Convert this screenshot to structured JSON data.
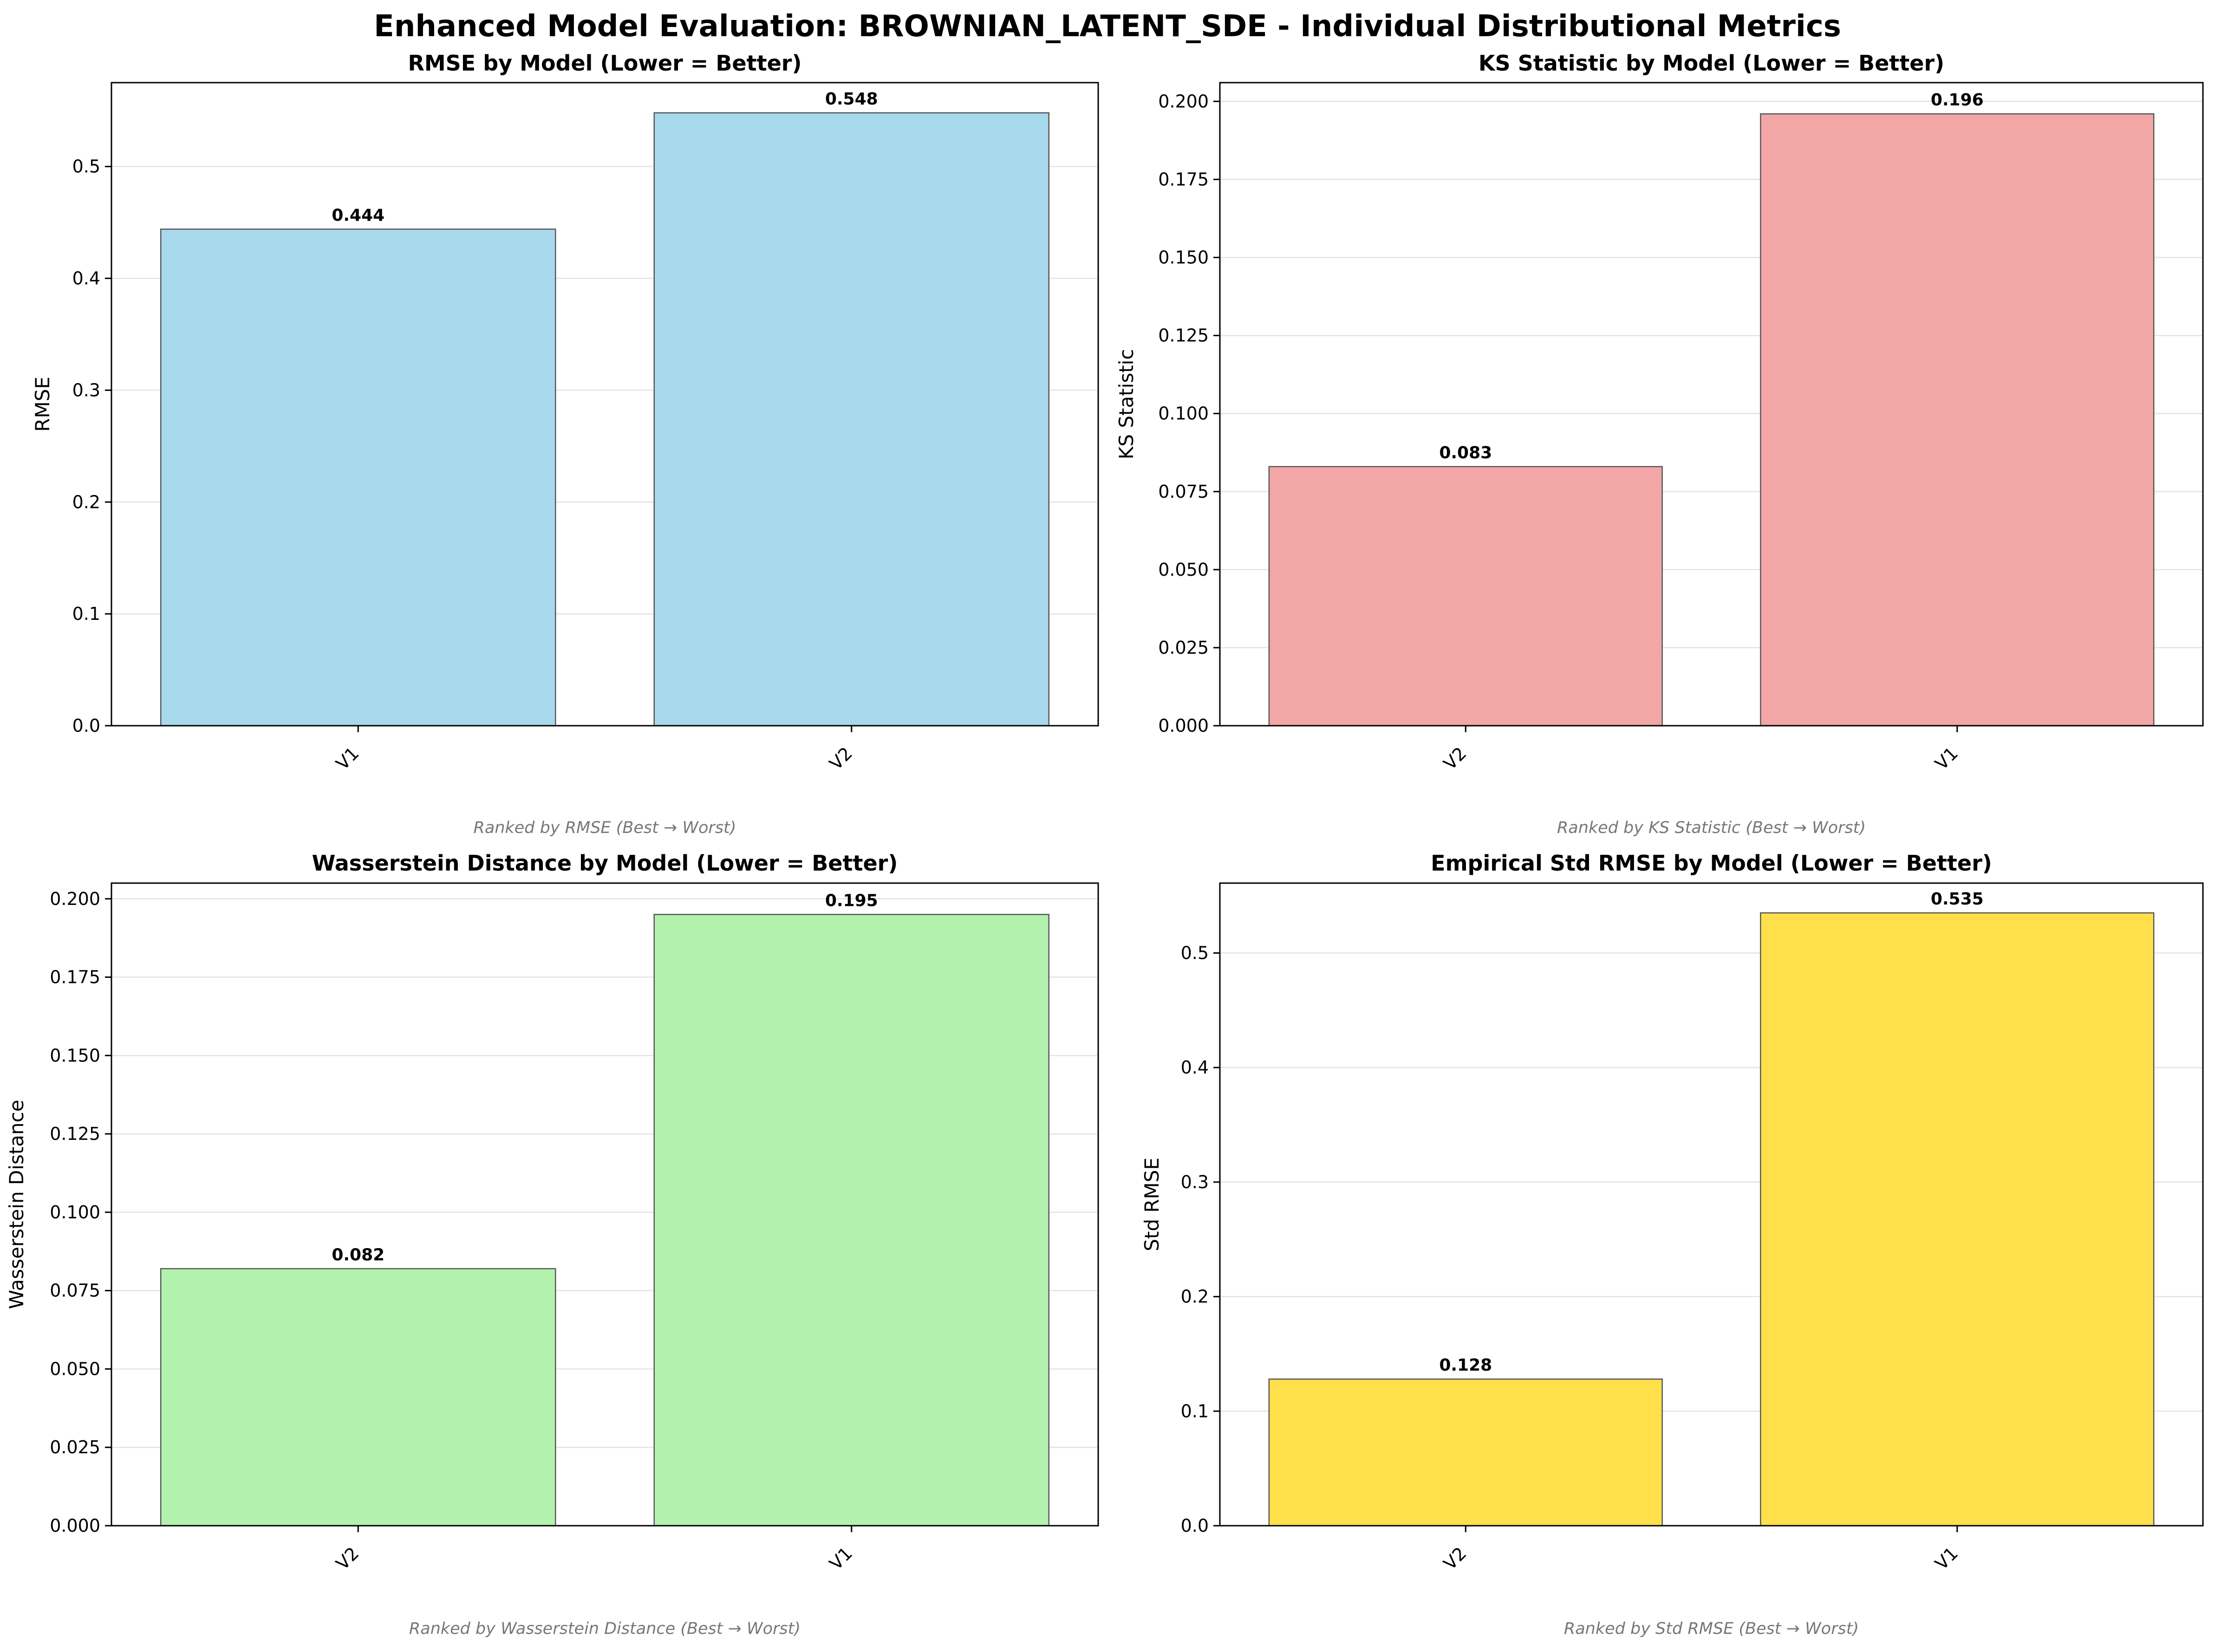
{
  "title": "Enhanced Model Evaluation: BROWNIAN_LATENT_SDE - Individual Distributional Metrics",
  "chart_data": [
    {
      "type": "bar",
      "title": "RMSE by Model (Lower = Better)",
      "ylabel": "RMSE",
      "categories": [
        "V1",
        "V2"
      ],
      "values": [
        0.444,
        0.548
      ],
      "value_labels": [
        "0.444",
        "0.548"
      ],
      "ylim": [
        0,
        0.575
      ],
      "yticks": [
        0,
        0.1,
        0.2,
        0.3,
        0.4,
        0.5
      ],
      "ytick_labels": [
        "0.0",
        "0.1",
        "0.2",
        "0.3",
        "0.4",
        "0.5"
      ],
      "color": "#a8d8ec",
      "grid": "y",
      "note": "Ranked by RMSE (Best → Worst)"
    },
    {
      "type": "bar",
      "title": "KS Statistic by Model (Lower = Better)",
      "ylabel": "KS Statistic",
      "categories": [
        "V2",
        "V1"
      ],
      "values": [
        0.083,
        0.196
      ],
      "value_labels": [
        "0.083",
        "0.196"
      ],
      "ylim": [
        0,
        0.206
      ],
      "yticks": [
        0,
        0.025,
        0.05,
        0.075,
        0.1,
        0.125,
        0.15,
        0.175,
        0.2
      ],
      "ytick_labels": [
        "0.000",
        "0.025",
        "0.050",
        "0.075",
        "0.100",
        "0.125",
        "0.150",
        "0.175",
        "0.200"
      ],
      "color": "#f2a6a6",
      "grid": "y",
      "note": "Ranked by KS Statistic (Best → Worst)"
    },
    {
      "type": "bar",
      "title": "Wasserstein Distance by Model (Lower = Better)",
      "ylabel": "Wasserstein Distance",
      "categories": [
        "V2",
        "V1"
      ],
      "values": [
        0.082,
        0.195
      ],
      "value_labels": [
        "0.082",
        "0.195"
      ],
      "ylim": [
        0,
        0.205
      ],
      "yticks": [
        0,
        0.025,
        0.05,
        0.075,
        0.1,
        0.125,
        0.15,
        0.175,
        0.2
      ],
      "ytick_labels": [
        "0.000",
        "0.025",
        "0.050",
        "0.075",
        "0.100",
        "0.125",
        "0.150",
        "0.175",
        "0.200"
      ],
      "color": "#b2f2ae",
      "grid": "y",
      "note": "Ranked by Wasserstein Distance (Best → Worst)"
    },
    {
      "type": "bar",
      "title": "Empirical Std RMSE by Model (Lower = Better)",
      "ylabel": "Std RMSE",
      "categories": [
        "V2",
        "V1"
      ],
      "values": [
        0.128,
        0.535
      ],
      "value_labels": [
        "0.128",
        "0.535"
      ],
      "ylim": [
        0,
        0.561
      ],
      "yticks": [
        0,
        0.1,
        0.2,
        0.3,
        0.4,
        0.5
      ],
      "ytick_labels": [
        "0.0",
        "0.1",
        "0.2",
        "0.3",
        "0.4",
        "0.5"
      ],
      "color": "#ffe04b",
      "grid": "y",
      "note": "Ranked by Std RMSE (Best → Worst)"
    }
  ]
}
